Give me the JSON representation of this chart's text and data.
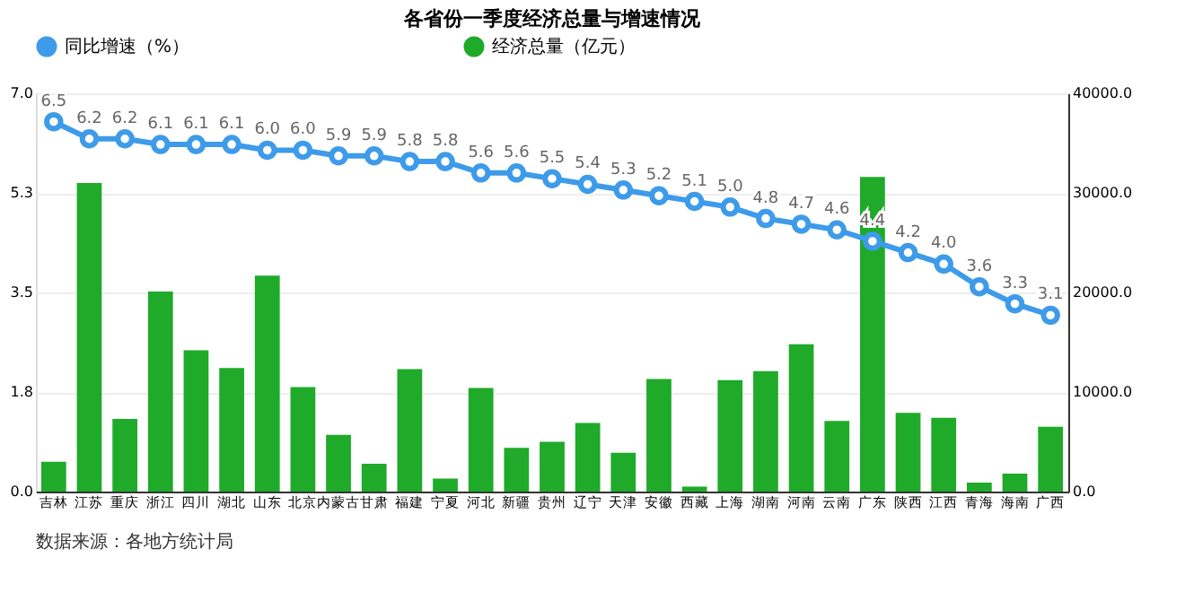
{
  "chart_data": {
    "type": "bar",
    "title": "各省份一季度经济总量与增速情况",
    "categories": [
      "吉林",
      "江苏",
      "重庆",
      "浙江",
      "四川",
      "湖北",
      "山东",
      "北京",
      "内蒙古",
      "甘肃",
      "福建",
      "宁夏",
      "河北",
      "新疆",
      "贵州",
      "辽宁",
      "天津",
      "安徽",
      "西藏",
      "上海",
      "湖南",
      "河南",
      "云南",
      "广东",
      "陕西",
      "江西",
      "青海",
      "海南",
      "广西"
    ],
    "series": [
      {
        "name": "同比增速（%）",
        "type": "line",
        "color": "#3d9be9",
        "marker": "circle",
        "value_labels": [
          "6.5",
          "6.2",
          "6.2",
          "6.1",
          "6.1",
          "6.1",
          "6.0",
          "6.0",
          "5.9",
          "5.9",
          "5.8",
          "5.8",
          "5.6",
          "5.6",
          "5.5",
          "5.4",
          "5.3",
          "5.2",
          "5.1",
          "5.0",
          "4.8",
          "4.7",
          "4.6",
          "4.4",
          "4.2",
          "4.0",
          "3.6",
          "3.3",
          "3.1"
        ],
        "values": [
          6.5,
          6.2,
          6.2,
          6.1,
          6.1,
          6.1,
          6.0,
          6.0,
          5.9,
          5.9,
          5.8,
          5.8,
          5.6,
          5.6,
          5.5,
          5.4,
          5.3,
          5.2,
          5.1,
          5.0,
          4.8,
          4.7,
          4.6,
          4.4,
          4.2,
          4.0,
          3.6,
          3.3,
          3.1
        ]
      },
      {
        "name": "经济总量（亿元）",
        "axis": "y2",
        "color": "#1faa2a",
        "values": [
          3000,
          31000,
          7300,
          20100,
          14200,
          12400,
          21700,
          10500,
          5700,
          2800,
          12300,
          1300,
          10400,
          4400,
          5000,
          6900,
          3900,
          11300,
          500,
          11200,
          12100,
          14800,
          7100,
          31600,
          7900,
          7400,
          900,
          1800,
          6500
        ]
      }
    ],
    "ylim": [
      0,
      7
    ],
    "yticks": [
      {
        "value": 0,
        "label": "0.0"
      },
      {
        "value": 1.75,
        "label": "1.8"
      },
      {
        "value": 3.5,
        "label": "3.5"
      },
      {
        "value": 5.25,
        "label": "5.3"
      },
      {
        "value": 7,
        "label": "7.0"
      }
    ],
    "y2lim": [
      0,
      40000
    ],
    "y2ticks": [
      {
        "value": 0,
        "label": "0.0"
      },
      {
        "value": 10000,
        "label": "10000.0"
      },
      {
        "value": 20000,
        "label": "20000.0"
      },
      {
        "value": 30000,
        "label": "30000.0"
      },
      {
        "value": 40000,
        "label": "40000.0"
      }
    ],
    "grid": "y",
    "legend": "top",
    "annotations": [
      "数据来源：各地方统计局"
    ]
  }
}
